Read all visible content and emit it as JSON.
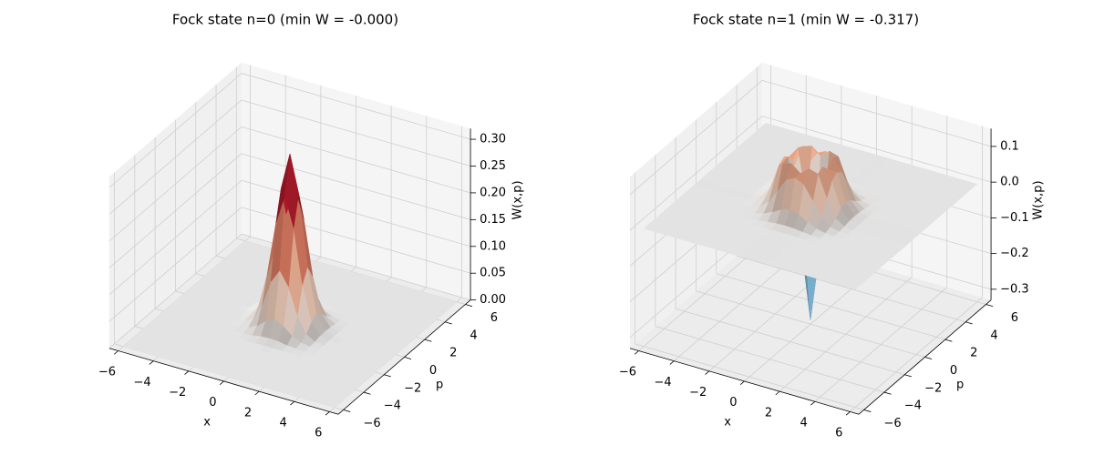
{
  "chart_data": [
    {
      "type": "surface",
      "title": "Fock state n=0  (min W = -0.000)",
      "xlabel": "x",
      "ylabel": "p",
      "zlabel": "W(x,p)",
      "colormap": "RdBu_r",
      "grid": true,
      "xlim": [
        -6.5,
        6.5
      ],
      "ylim": [
        -6.5,
        6.5
      ],
      "zlim": [
        0,
        0.32
      ],
      "xticks": [
        {
          "value": -6,
          "label": "−6"
        },
        {
          "value": -4,
          "label": "−4"
        },
        {
          "value": -2,
          "label": "−2"
        },
        0,
        2,
        4,
        6
      ],
      "yticks": [
        {
          "value": -6,
          "label": "−6"
        },
        {
          "value": -4,
          "label": "−4"
        },
        {
          "value": -2,
          "label": "−2"
        },
        0,
        2,
        4,
        6
      ],
      "zticks": [
        {
          "value": 0,
          "label": "0.00"
        },
        0.05,
        {
          "value": 0.1,
          "label": "0.10"
        },
        0.15,
        {
          "value": 0.2,
          "label": "0.20"
        },
        0.25,
        {
          "value": 0.3,
          "label": "0.30"
        }
      ],
      "x": [
        -6,
        -3,
        -2.5,
        -2,
        -1.5,
        -1,
        -0.5,
        0,
        0.5,
        1,
        1.5,
        2,
        2.5,
        3,
        6
      ],
      "y": [
        -6,
        -3,
        -2.5,
        -2,
        -1.5,
        -1,
        -0.5,
        0,
        0.5,
        1,
        1.5,
        2,
        2.5,
        3,
        6
      ],
      "z": [
        [
          0,
          0,
          0,
          0,
          0,
          0,
          0,
          0,
          0,
          0,
          0,
          0,
          0,
          0,
          0
        ],
        [
          0,
          0,
          0,
          0,
          0,
          0,
          0,
          0,
          0,
          0,
          0,
          0,
          0,
          0,
          0
        ],
        [
          0,
          0,
          0,
          0,
          0,
          0,
          0,
          0.001,
          0,
          0,
          0,
          0,
          0,
          0,
          0
        ],
        [
          0,
          0,
          0,
          0,
          0.001,
          0.002,
          0.005,
          0.006,
          0.005,
          0.002,
          0.001,
          0,
          0,
          0,
          0
        ],
        [
          0,
          0,
          0,
          0.001,
          0.004,
          0.012,
          0.026,
          0.034,
          0.026,
          0.012,
          0.004,
          0.001,
          0,
          0,
          0
        ],
        [
          0,
          0,
          0,
          0.002,
          0.012,
          0.043,
          0.091,
          0.117,
          0.091,
          0.043,
          0.012,
          0.002,
          0,
          0,
          0
        ],
        [
          0,
          0,
          0,
          0.005,
          0.026,
          0.091,
          0.193,
          0.248,
          0.193,
          0.091,
          0.026,
          0.005,
          0,
          0,
          0
        ],
        [
          0,
          0,
          0.001,
          0.006,
          0.034,
          0.117,
          0.248,
          0.318,
          0.248,
          0.117,
          0.034,
          0.006,
          0.001,
          0,
          0
        ],
        [
          0,
          0,
          0,
          0.005,
          0.026,
          0.091,
          0.193,
          0.248,
          0.193,
          0.091,
          0.026,
          0.005,
          0,
          0,
          0
        ],
        [
          0,
          0,
          0,
          0.002,
          0.012,
          0.043,
          0.091,
          0.117,
          0.091,
          0.043,
          0.012,
          0.002,
          0,
          0,
          0
        ],
        [
          0,
          0,
          0,
          0.001,
          0.004,
          0.012,
          0.026,
          0.034,
          0.026,
          0.012,
          0.004,
          0.001,
          0,
          0,
          0
        ],
        [
          0,
          0,
          0,
          0,
          0.001,
          0.002,
          0.005,
          0.006,
          0.005,
          0.002,
          0.001,
          0,
          0,
          0,
          0
        ],
        [
          0,
          0,
          0,
          0,
          0,
          0,
          0,
          0.001,
          0,
          0,
          0,
          0,
          0,
          0,
          0
        ],
        [
          0,
          0,
          0,
          0,
          0,
          0,
          0,
          0,
          0,
          0,
          0,
          0,
          0,
          0,
          0
        ],
        [
          0,
          0,
          0,
          0,
          0,
          0,
          0,
          0,
          0,
          0,
          0,
          0,
          0,
          0,
          0
        ]
      ]
    },
    {
      "type": "surface",
      "title": "Fock state n=1  (min W = -0.317)",
      "xlabel": "x",
      "ylabel": "p",
      "zlabel": "W(x,p)",
      "colormap": "RdBu_r",
      "grid": true,
      "xlim": [
        -6.5,
        6.5
      ],
      "ylim": [
        -6.5,
        6.5
      ],
      "zlim": [
        -0.33,
        0.15
      ],
      "xticks": [
        {
          "value": -6,
          "label": "−6"
        },
        {
          "value": -4,
          "label": "−4"
        },
        {
          "value": -2,
          "label": "−2"
        },
        0,
        2,
        4,
        6
      ],
      "yticks": [
        {
          "value": -6,
          "label": "−6"
        },
        {
          "value": -4,
          "label": "−4"
        },
        {
          "value": -2,
          "label": "−2"
        },
        0,
        2,
        4,
        6
      ],
      "zticks": [
        {
          "value": -0.3,
          "label": "−0.3"
        },
        {
          "value": -0.2,
          "label": "−0.2"
        },
        {
          "value": -0.1,
          "label": "−0.1"
        },
        {
          "value": 0,
          "label": "0.0"
        },
        0.1
      ],
      "x": [
        -6,
        -3,
        -2.5,
        -2,
        -1.5,
        -1,
        -0.5,
        0,
        0.5,
        1,
        1.5,
        2,
        2.5,
        3,
        6
      ],
      "y": [
        -6,
        -3,
        -2.5,
        -2,
        -1.5,
        -1,
        -0.5,
        0,
        0.5,
        1,
        1.5,
        2,
        2.5,
        3,
        6
      ],
      "z": [
        [
          0,
          0,
          0,
          0,
          0,
          0,
          0,
          0,
          0,
          0,
          0,
          0,
          0,
          0,
          0
        ],
        [
          0,
          0,
          0,
          0,
          0,
          0,
          0.001,
          0.001,
          0.001,
          0,
          0,
          0,
          0,
          0,
          0
        ],
        [
          0,
          0,
          0,
          0,
          0.001,
          0.003,
          0.006,
          0.007,
          0.006,
          0.003,
          0.001,
          0,
          0,
          0,
          0
        ],
        [
          0,
          0,
          0,
          0.002,
          0.007,
          0.019,
          0.034,
          0.041,
          0.034,
          0.019,
          0.007,
          0.002,
          0,
          0,
          0
        ],
        [
          0,
          0,
          0.001,
          0.007,
          0.028,
          0.068,
          0.105,
          0.117,
          0.105,
          0.068,
          0.028,
          0.007,
          0.001,
          0,
          0
        ],
        [
          0,
          0,
          0.003,
          0.019,
          0.068,
          0.129,
          0.137,
          0.117,
          0.137,
          0.129,
          0.068,
          0.019,
          0.003,
          0,
          0
        ],
        [
          0,
          0.001,
          0.006,
          0.034,
          0.105,
          0.137,
          0,
          -0.124,
          0,
          0.137,
          0.105,
          0.034,
          0.006,
          0.001,
          0
        ],
        [
          0,
          0.001,
          0.007,
          0.041,
          0.117,
          0.117,
          -0.124,
          -0.318,
          -0.124,
          0.117,
          0.117,
          0.041,
          0.007,
          0.001,
          0
        ],
        [
          0,
          0.001,
          0.006,
          0.034,
          0.105,
          0.137,
          0,
          -0.124,
          0,
          0.137,
          0.105,
          0.034,
          0.006,
          0.001,
          0
        ],
        [
          0,
          0,
          0.003,
          0.019,
          0.068,
          0.129,
          0.137,
          0.117,
          0.137,
          0.129,
          0.068,
          0.019,
          0.003,
          0,
          0
        ],
        [
          0,
          0,
          0.001,
          0.007,
          0.028,
          0.068,
          0.105,
          0.117,
          0.105,
          0.068,
          0.028,
          0.007,
          0.001,
          0,
          0
        ],
        [
          0,
          0,
          0,
          0.002,
          0.007,
          0.019,
          0.034,
          0.041,
          0.034,
          0.019,
          0.007,
          0.002,
          0,
          0,
          0
        ],
        [
          0,
          0,
          0,
          0,
          0.001,
          0.003,
          0.006,
          0.007,
          0.006,
          0.003,
          0.001,
          0,
          0,
          0,
          0
        ],
        [
          0,
          0,
          0,
          0,
          0,
          0,
          0.001,
          0.001,
          0.001,
          0,
          0,
          0,
          0,
          0,
          0
        ],
        [
          0,
          0,
          0,
          0,
          0,
          0,
          0,
          0,
          0,
          0,
          0,
          0,
          0,
          0,
          0
        ]
      ]
    }
  ]
}
